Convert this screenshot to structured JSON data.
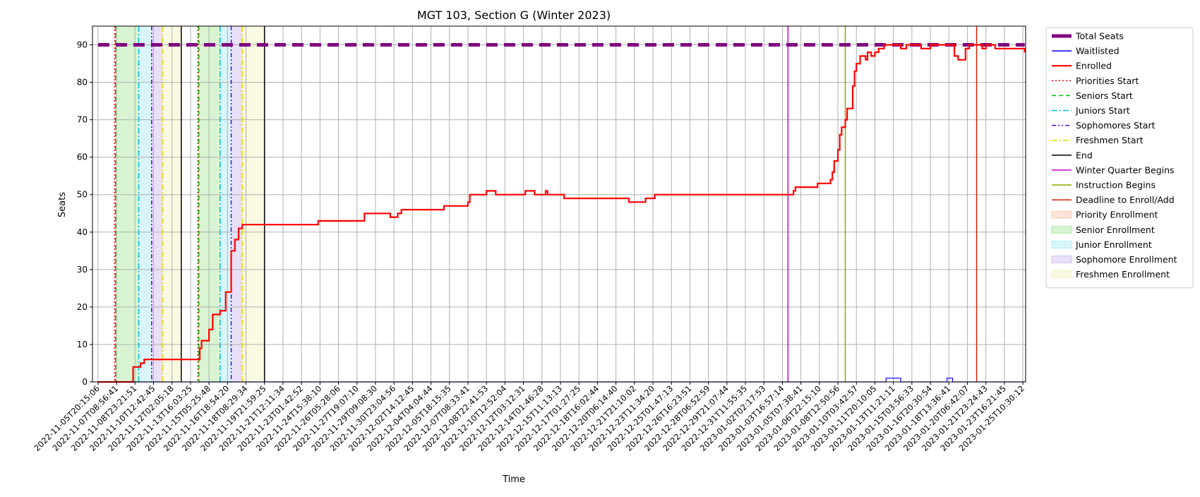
{
  "chart_data": {
    "type": "line",
    "title": "MGT 103, Section G (Winter 2023)",
    "xlabel": "Time",
    "ylabel": "Seats",
    "ylim": [
      0,
      95
    ],
    "grid": true,
    "legend_placement": "outside-right-top",
    "x_tick_labels": [
      "2022-11-05T20:15:06",
      "2022-11-07T08:56:41",
      "2022-11-08T23:21:51",
      "2022-11-10T12:42:45",
      "2022-11-12T02:05:18",
      "2022-11-13T16:03:25",
      "2022-11-15T05:25:48",
      "2022-11-16T18:54:20",
      "2022-11-18T08:29:34",
      "2022-11-19T21:59:25",
      "2022-11-21T12:11:34",
      "2022-11-23T01:42:52",
      "2022-11-24T15:38:10",
      "2022-11-26T05:28:06",
      "2022-11-27T19:07:10",
      "2022-11-29T09:08:30",
      "2022-11-30T23:04:56",
      "2022-12-02T14:12:45",
      "2022-12-04T04:04:44",
      "2022-12-05T18:15:35",
      "2022-12-07T08:33:41",
      "2022-12-08T22:41:53",
      "2022-12-10T12:52:04",
      "2022-12-12T03:12:31",
      "2022-12-14T01:46:28",
      "2022-12-15T11:13:13",
      "2022-12-17T01:27:25",
      "2022-12-18T16:02:44",
      "2022-12-20T06:14:40",
      "2022-12-21T21:10:02",
      "2022-12-23T11:34:20",
      "2022-12-25T01:47:13",
      "2022-12-26T16:23:51",
      "2022-12-28T06:52:59",
      "2022-12-29T21:07:44",
      "2022-12-31T11:55:35",
      "2023-01-02T02:17:53",
      "2023-01-03T16:57:14",
      "2023-01-05T07:38:41",
      "2023-01-06T22:15:10",
      "2023-01-08T12:50:56",
      "2023-01-10T03:42:57",
      "2023-01-11T20:10:05",
      "2023-01-13T11:21:11",
      "2023-01-15T03:56:33",
      "2023-01-16T20:30:54",
      "2023-01-18T13:36:41",
      "2023-01-20T06:42:07",
      "2023-01-21T23:24:43",
      "2023-01-23T16:21:45",
      "2023-01-25T10:30:12"
    ],
    "y_ticks": [
      0,
      10,
      20,
      30,
      40,
      50,
      60,
      70,
      80,
      90
    ],
    "series": [
      {
        "name": "Total Seats",
        "color": "#800080",
        "style": "dashed-thick",
        "points": [
          [
            0,
            90
          ],
          [
            50.1,
            90
          ]
        ]
      },
      {
        "name": "Waitlisted",
        "color": "#0000ff",
        "style": "solid-thin",
        "points": [
          [
            0,
            0
          ],
          [
            42.6,
            0
          ],
          [
            42.6,
            1
          ],
          [
            43.4,
            1
          ],
          [
            43.4,
            0
          ],
          [
            45.9,
            0
          ],
          [
            45.9,
            1
          ],
          [
            46.2,
            1
          ],
          [
            46.2,
            0
          ],
          [
            50.1,
            0
          ]
        ]
      },
      {
        "name": "Enrolled",
        "color": "#ff0000",
        "style": "solid-thick",
        "points": [
          [
            0,
            0
          ],
          [
            1.9,
            0
          ],
          [
            1.9,
            4
          ],
          [
            2.3,
            4
          ],
          [
            2.3,
            5
          ],
          [
            2.5,
            5
          ],
          [
            2.5,
            6
          ],
          [
            5.5,
            6
          ],
          [
            5.5,
            9
          ],
          [
            5.6,
            9
          ],
          [
            5.6,
            11
          ],
          [
            6.0,
            11
          ],
          [
            6.0,
            14
          ],
          [
            6.2,
            14
          ],
          [
            6.2,
            18
          ],
          [
            6.6,
            18
          ],
          [
            6.6,
            19
          ],
          [
            6.9,
            19
          ],
          [
            6.9,
            24
          ],
          [
            7.2,
            24
          ],
          [
            7.2,
            35
          ],
          [
            7.4,
            35
          ],
          [
            7.4,
            38
          ],
          [
            7.6,
            38
          ],
          [
            7.6,
            41
          ],
          [
            7.8,
            41
          ],
          [
            7.8,
            42
          ],
          [
            11.9,
            42
          ],
          [
            11.9,
            43
          ],
          [
            14.4,
            43
          ],
          [
            14.4,
            45
          ],
          [
            15.8,
            45
          ],
          [
            15.8,
            44
          ],
          [
            16.2,
            44
          ],
          [
            16.2,
            45
          ],
          [
            16.4,
            45
          ],
          [
            16.4,
            46
          ],
          [
            18.7,
            46
          ],
          [
            18.7,
            47
          ],
          [
            20.0,
            47
          ],
          [
            20.0,
            48
          ],
          [
            20.1,
            48
          ],
          [
            20.1,
            50
          ],
          [
            21.0,
            50
          ],
          [
            21.0,
            51
          ],
          [
            21.5,
            51
          ],
          [
            21.5,
            50
          ],
          [
            23.1,
            50
          ],
          [
            23.1,
            51
          ],
          [
            23.6,
            51
          ],
          [
            23.6,
            50
          ],
          [
            24.2,
            50
          ],
          [
            24.2,
            51
          ],
          [
            24.3,
            51
          ],
          [
            24.3,
            50
          ],
          [
            25.2,
            50
          ],
          [
            25.2,
            49
          ],
          [
            28.7,
            49
          ],
          [
            28.7,
            48
          ],
          [
            29.6,
            48
          ],
          [
            29.6,
            49
          ],
          [
            30.1,
            49
          ],
          [
            30.1,
            50
          ],
          [
            37.6,
            50
          ],
          [
            37.6,
            51
          ],
          [
            37.7,
            51
          ],
          [
            37.7,
            52
          ],
          [
            38.9,
            52
          ],
          [
            38.9,
            53
          ],
          [
            39.6,
            53
          ],
          [
            39.6,
            54
          ],
          [
            39.7,
            54
          ],
          [
            39.7,
            56
          ],
          [
            39.8,
            56
          ],
          [
            39.8,
            59
          ],
          [
            40.0,
            59
          ],
          [
            40.0,
            62
          ],
          [
            40.1,
            62
          ],
          [
            40.1,
            66
          ],
          [
            40.2,
            66
          ],
          [
            40.2,
            68
          ],
          [
            40.4,
            68
          ],
          [
            40.4,
            70
          ],
          [
            40.5,
            70
          ],
          [
            40.5,
            73
          ],
          [
            40.8,
            73
          ],
          [
            40.8,
            79
          ],
          [
            40.9,
            79
          ],
          [
            40.9,
            83
          ],
          [
            41.0,
            83
          ],
          [
            41.0,
            85
          ],
          [
            41.2,
            85
          ],
          [
            41.2,
            87
          ],
          [
            41.5,
            87
          ],
          [
            41.5,
            86
          ],
          [
            41.6,
            86
          ],
          [
            41.6,
            88
          ],
          [
            41.8,
            88
          ],
          [
            41.8,
            87
          ],
          [
            42.0,
            87
          ],
          [
            42.0,
            88
          ],
          [
            42.2,
            88
          ],
          [
            42.2,
            89
          ],
          [
            42.5,
            89
          ],
          [
            42.5,
            90
          ],
          [
            43.4,
            90
          ],
          [
            43.4,
            89
          ],
          [
            43.7,
            89
          ],
          [
            43.7,
            90
          ],
          [
            44.5,
            90
          ],
          [
            44.5,
            89
          ],
          [
            45.0,
            89
          ],
          [
            45.0,
            90
          ],
          [
            46.3,
            90
          ],
          [
            46.3,
            87
          ],
          [
            46.5,
            87
          ],
          [
            46.5,
            86
          ],
          [
            46.9,
            86
          ],
          [
            46.9,
            89
          ],
          [
            47.1,
            89
          ],
          [
            47.1,
            90
          ],
          [
            47.8,
            90
          ],
          [
            47.8,
            89
          ],
          [
            48.0,
            89
          ],
          [
            48.0,
            90
          ],
          [
            48.5,
            90
          ],
          [
            48.5,
            89
          ],
          [
            50.1,
            89
          ],
          [
            50.1,
            88
          ]
        ]
      }
    ],
    "vertical_markers": [
      {
        "name": "Priorities Start",
        "color": "#ff0000",
        "style": "dotted",
        "x": [
          0.9,
          5.4
        ]
      },
      {
        "name": "Seniors Start",
        "color": "#00bb00",
        "style": "dashed",
        "x": [
          0.95,
          5.45
        ]
      },
      {
        "name": "Juniors Start",
        "color": "#00bcd4",
        "style": "dashdot",
        "x": [
          2.2,
          6.6
        ]
      },
      {
        "name": "Sophomores Start",
        "color": "#5500dd",
        "style": "dashdotdot",
        "x": [
          2.9,
          7.2
        ]
      },
      {
        "name": "Freshmen Start",
        "color": "#dddd00",
        "style": "dashdot",
        "x": [
          3.5,
          7.8
        ]
      },
      {
        "name": "End",
        "color": "#000000",
        "style": "solid",
        "x": [
          4.5,
          9.0
        ]
      },
      {
        "name": "Winter Quarter Begins",
        "color": "#cc00cc",
        "style": "solid",
        "x": [
          37.3
        ]
      },
      {
        "name": "Instruction Begins",
        "color": "#88aa00",
        "style": "solid",
        "x": [
          40.4
        ]
      },
      {
        "name": "Deadline to Enroll/Add",
        "color": "#cc2200",
        "style": "solid",
        "x": [
          47.5
        ]
      }
    ],
    "shaded_regions": [
      {
        "name": "Priority Enrollment",
        "color": "#f4a582",
        "spans": [
          [
            0.9,
            0.95
          ],
          [
            5.4,
            5.45
          ]
        ]
      },
      {
        "name": "Senior Enrollment",
        "color": "#7fdb6a",
        "spans": [
          [
            0.95,
            2.2
          ],
          [
            5.45,
            6.6
          ]
        ]
      },
      {
        "name": "Junior Enrollment",
        "color": "#7fe0ee",
        "spans": [
          [
            2.2,
            2.9
          ],
          [
            6.6,
            7.2
          ]
        ]
      },
      {
        "name": "Sophomore Enrollment",
        "color": "#b596e6",
        "spans": [
          [
            2.9,
            3.5
          ],
          [
            7.2,
            7.8
          ]
        ]
      },
      {
        "name": "Freshmen Enrollment",
        "color": "#eeee9e",
        "spans": [
          [
            3.5,
            4.5
          ],
          [
            7.8,
            9.0
          ]
        ]
      }
    ]
  }
}
